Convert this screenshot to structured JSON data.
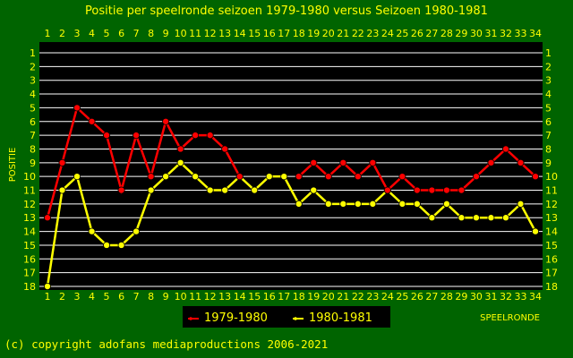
{
  "chart_data": {
    "type": "line",
    "title": "Positie per speelronde seizoen 1979-1980 versus Seizoen 1980-1981",
    "xlabel": "SPEELRONDE",
    "ylabel": "POSITIE",
    "x": [
      1,
      2,
      3,
      4,
      5,
      6,
      7,
      8,
      9,
      10,
      11,
      12,
      13,
      14,
      15,
      16,
      17,
      18,
      19,
      20,
      21,
      22,
      23,
      24,
      25,
      26,
      27,
      28,
      29,
      30,
      31,
      32,
      33,
      34
    ],
    "xlim": [
      1,
      34
    ],
    "ylim": [
      1,
      18
    ],
    "y_inverted": true,
    "y_ticks": [
      1,
      2,
      3,
      4,
      5,
      6,
      7,
      8,
      9,
      10,
      11,
      12,
      13,
      14,
      15,
      16,
      17,
      18
    ],
    "grid": true,
    "legend_position": "bottom-center",
    "series": [
      {
        "name": "1979-1980",
        "color": "#ff0000",
        "values": [
          13,
          9,
          5,
          6,
          7,
          11,
          7,
          10,
          6,
          8,
          7,
          7,
          8,
          10,
          null,
          null,
          null,
          10,
          9,
          10,
          9,
          10,
          9,
          11,
          10,
          11,
          11,
          11,
          11,
          10,
          9,
          8,
          9,
          10
        ]
      },
      {
        "name": "1980-1981",
        "color": "#ffff00",
        "values": [
          18,
          11,
          10,
          14,
          15,
          15,
          14,
          11,
          10,
          9,
          10,
          11,
          11,
          10,
          11,
          10,
          10,
          12,
          11,
          12,
          12,
          12,
          12,
          11,
          12,
          12,
          13,
          12,
          13,
          13,
          13,
          13,
          12,
          14
        ]
      }
    ]
  },
  "footer": {
    "copyright": "(c) copyright adofans mediaproductions 2006-2021"
  },
  "colors": {
    "background": "#006400",
    "plot_background": "#000000",
    "text": "#ffff00",
    "grid": "#ffffff"
  }
}
